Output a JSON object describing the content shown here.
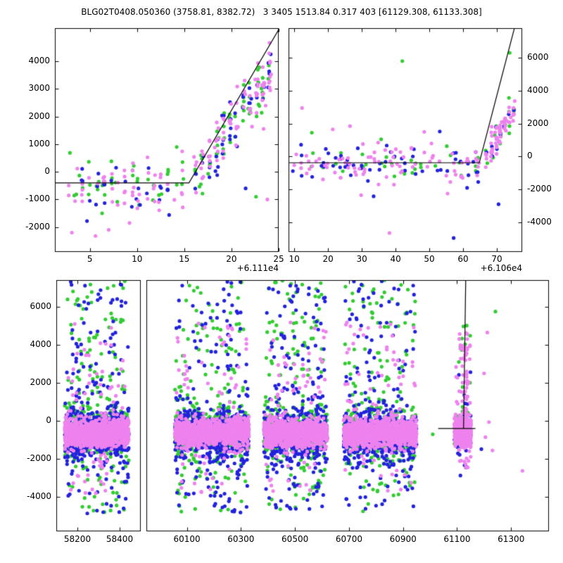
{
  "figure_title": "BLG02T0408.050360 (3758.81, 8382.72)   3 3405 1513.84 0.317 403 [61129.308, 61133.308]",
  "colors": {
    "background": "#ffffff",
    "frame": "#000000",
    "line": "#000000",
    "green": "#33cc33",
    "blue": "#2222dd",
    "violet": "#ee82ee"
  },
  "chart_data": [
    {
      "id": "top-left",
      "type": "scatter",
      "ylim": [
        -2900,
        5200
      ],
      "yticks": [
        -2000,
        -1000,
        0,
        1000,
        2000,
        3000,
        4000
      ],
      "yticks_side": "left",
      "panels": [
        {
          "xlim": [
            1.3,
            25
          ],
          "xticks": [
            5,
            10,
            15,
            20,
            25
          ]
        }
      ],
      "x_axis_offset": "+6.111e4",
      "marker_radius": 2.6,
      "lines": [
        [
          [
            1.3,
            -400
          ],
          [
            15.5,
            -400
          ],
          [
            25,
            5150
          ]
        ]
      ],
      "clusters": [
        {
          "kind": "epochs",
          "x": [
            2.3,
            15.2
          ],
          "n_epochs": 17,
          "streak_sd": 0.09,
          "counts": {
            "green": [
              0,
              3
            ],
            "blue": [
              0,
              3
            ],
            "violet": [
              1,
              5
            ]
          },
          "y": {
            "mode": "flat",
            "mean": -520,
            "sd": 470
          }
        },
        {
          "kind": "epochs",
          "x": [
            15.9,
            24.4
          ],
          "n_epochs": 12,
          "streak_sd": 0.1,
          "counts": {
            "green": [
              2,
              7
            ],
            "blue": [
              1,
              5
            ],
            "violet": [
              4,
              12
            ]
          },
          "y": {
            "mode": "trend",
            "poly": [
              [
                15.9,
                -250
              ],
              [
                24.4,
                3600
              ]
            ],
            "sd": 520
          }
        },
        {
          "kind": "points",
          "pts": {
            "violet": [
              [
                3.1,
                -2200
              ],
              [
                5.6,
                -2320
              ],
              [
                7.0,
                -2100
              ],
              [
                9.2,
                -1850
              ],
              [
                23.8,
                -1000
              ]
            ],
            "blue": [
              [
                4.7,
                -1780
              ],
              [
                13.4,
                -1560
              ],
              [
                21.5,
                -600
              ]
            ],
            "green": [
              [
                6.3,
                -1500
              ],
              [
                22.6,
                -900
              ],
              [
                14.2,
                900
              ]
            ]
          }
        }
      ]
    },
    {
      "id": "top-right",
      "type": "scatter",
      "ylim": [
        -5800,
        7800
      ],
      "yticks": [
        -4000,
        -2000,
        0,
        2000,
        4000,
        6000
      ],
      "yticks_side": "right",
      "panels": [
        {
          "xlim": [
            8.3,
            77.5
          ],
          "xticks": [
            10,
            20,
            30,
            40,
            50,
            60,
            70
          ]
        }
      ],
      "x_axis_offset": "+6.106e4",
      "marker_radius": 2.6,
      "lines": [
        [
          [
            8.3,
            -380
          ],
          [
            64.8,
            -380
          ],
          [
            75.2,
            7800
          ]
        ]
      ],
      "clusters": [
        {
          "kind": "epochs",
          "x": [
            9.5,
            65.5
          ],
          "n_epochs": 34,
          "streak_sd": 0.35,
          "counts": {
            "green": [
              0,
              2
            ],
            "blue": [
              0,
              3
            ],
            "violet": [
              1,
              4
            ]
          },
          "y": {
            "mode": "flat",
            "mean": -380,
            "sd": 550
          }
        },
        {
          "kind": "epochs",
          "x": [
            66.5,
            75.5
          ],
          "n_epochs": 7,
          "streak_sd": 0.18,
          "counts": {
            "green": [
              1,
              4
            ],
            "blue": [
              1,
              3
            ],
            "violet": [
              4,
              13
            ]
          },
          "y": {
            "mode": "trend",
            "poly": [
              [
                66.5,
                -150
              ],
              [
                75.5,
                3100
              ]
            ],
            "sd": 430
          }
        },
        {
          "kind": "points",
          "pts": {
            "green": [
              [
                42,
                5800
              ],
              [
                73.8,
                6300
              ],
              [
                15.2,
                1450
              ]
            ],
            "violet": [
              [
                12.3,
                2950
              ],
              [
                38.2,
                -4650
              ],
              [
                21.4,
                1650
              ],
              [
                48.5,
                1500
              ],
              [
                29.8,
                -2350
              ],
              [
                55.4,
                -2250
              ],
              [
                26.5,
                1850
              ]
            ],
            "blue": [
              [
                57.2,
                -4950
              ],
              [
                33.5,
                -2420
              ],
              [
                70.5,
                -2900
              ]
            ]
          }
        }
      ]
    },
    {
      "id": "bottom",
      "type": "scatter",
      "ylim": [
        -5800,
        7400
      ],
      "yticks": [
        -4000,
        -2000,
        0,
        2000,
        4000,
        6000
      ],
      "yticks_side": "left",
      "panels": [
        {
          "xlim": [
            58100,
            58500
          ],
          "xticks": [
            58200,
            58400
          ]
        },
        {
          "xlim": [
            59950,
            61440
          ],
          "xticks": [
            60100,
            60300,
            60500,
            60700,
            60900,
            61100,
            61300
          ]
        }
      ],
      "x_axis_offset": "",
      "marker_radius": 2.6,
      "lines": [
        [
          [
            61030,
            -400
          ],
          [
            61168,
            -400
          ]
        ],
        [
          [
            61124,
            -400
          ],
          [
            61132,
            7400
          ]
        ]
      ],
      "clusters": [
        {
          "kind": "band",
          "x": [
            58140,
            58445
          ],
          "colors": {
            "violet": [
              1150,
              -620,
              340
            ],
            "blue": [
              430,
              -680,
              680
            ],
            "green": [
              330,
              -520,
              640
            ]
          }
        },
        {
          "kind": "tail",
          "x": [
            58150,
            58440
          ],
          "colors": {
            "violet": [
              70,
              -3800,
              5200
            ],
            "blue": [
              130,
              -4900,
              7350
            ],
            "green": [
              120,
              -4800,
              7400
            ]
          }
        },
        {
          "kind": "band",
          "x": [
            60055,
            60330
          ],
          "colors": {
            "violet": [
              1150,
              -620,
              340
            ],
            "blue": [
              430,
              -680,
              680
            ],
            "green": [
              330,
              -520,
              640
            ]
          }
        },
        {
          "kind": "tail",
          "x": [
            60060,
            60325
          ],
          "colors": {
            "violet": [
              70,
              -3800,
              5200
            ],
            "blue": [
              130,
              -4900,
              7350
            ],
            "green": [
              120,
              -4800,
              7400
            ]
          }
        },
        {
          "kind": "band",
          "x": [
            60385,
            60620
          ],
          "colors": {
            "violet": [
              1150,
              -620,
              340
            ],
            "blue": [
              430,
              -680,
              680
            ],
            "green": [
              330,
              -520,
              640
            ]
          }
        },
        {
          "kind": "tail",
          "x": [
            60390,
            60615
          ],
          "colors": {
            "violet": [
              70,
              -3800,
              5200
            ],
            "blue": [
              130,
              -4900,
              7350
            ],
            "green": [
              120,
              -4800,
              7400
            ]
          }
        },
        {
          "kind": "band",
          "x": [
            60680,
            60950
          ],
          "colors": {
            "violet": [
              1150,
              -620,
              340
            ],
            "blue": [
              430,
              -680,
              680
            ],
            "green": [
              330,
              -520,
              640
            ]
          }
        },
        {
          "kind": "tail",
          "x": [
            60685,
            60945
          ],
          "colors": {
            "violet": [
              70,
              -3800,
              5200
            ],
            "blue": [
              130,
              -4900,
              7350
            ],
            "green": [
              120,
              -4800,
              7400
            ]
          }
        },
        {
          "kind": "band",
          "x": [
            61090,
            61152
          ],
          "colors": {
            "violet": [
              480,
              -520,
              380
            ],
            "blue": [
              55,
              -650,
              480
            ],
            "green": [
              48,
              -420,
              500
            ]
          }
        },
        {
          "kind": "tail",
          "x": [
            61095,
            61150
          ],
          "colors": {
            "violet": [
              55,
              -2600,
              4650
            ],
            "blue": [
              14,
              -2900,
              2600
            ],
            "green": [
              15,
              -2200,
              5800
            ]
          }
        },
        {
          "kind": "tail",
          "x": [
            61118,
            61140
          ],
          "colors": {
            "violet": [
              40,
              -300,
              4600
            ],
            "green": [
              6,
              0,
              2000
            ],
            "blue": [
              5,
              -500,
              1500
            ]
          }
        },
        {
          "kind": "points",
          "pts": {
            "violet": [
              [
                61205,
                -850
              ],
              [
                61218,
                -60
              ],
              [
                61231,
                -1550
              ],
              [
                61342,
                -2620
              ],
              [
                61200,
                2500
              ],
              [
                61212,
                4650
              ]
            ],
            "green": [
              [
                61242,
                5750
              ],
              [
                61010,
                -700
              ]
            ],
            "blue": [
              [
                61190,
                -1480
              ]
            ]
          }
        }
      ]
    }
  ]
}
